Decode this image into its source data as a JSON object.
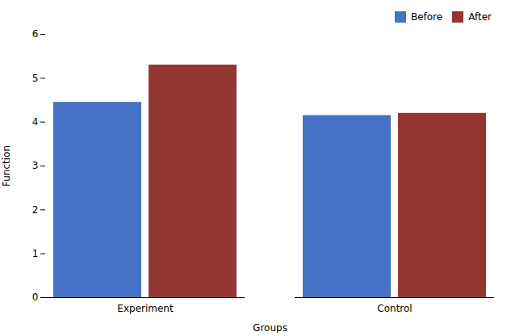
{
  "chart_data": {
    "type": "bar",
    "categories": [
      "Experiment",
      "Control"
    ],
    "series": [
      {
        "name": "Before",
        "color": "#4472C4",
        "values": [
          4.45,
          4.15
        ]
      },
      {
        "name": "After",
        "color": "#943634",
        "values": [
          5.3,
          4.2
        ]
      }
    ],
    "xlabel": "Groups",
    "ylabel": "Function",
    "ylim": [
      0,
      6
    ],
    "yticks": [
      0,
      1,
      2,
      3,
      4,
      5,
      6
    ],
    "legend": "upper right",
    "grid": false
  }
}
